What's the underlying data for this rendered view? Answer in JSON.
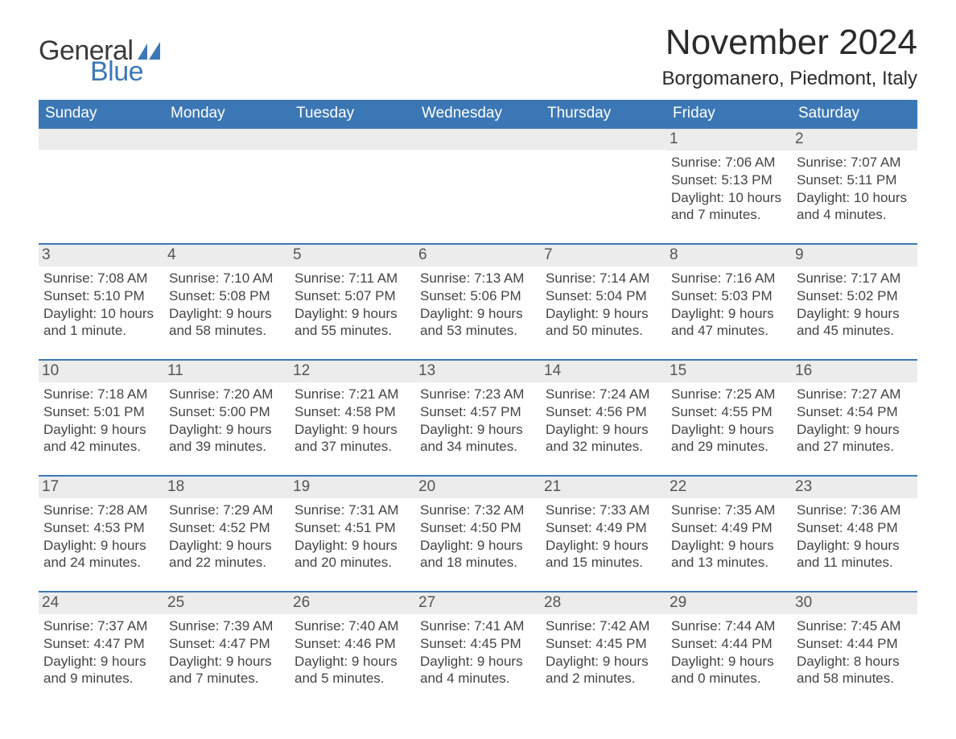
{
  "brand": {
    "word1": "General",
    "word2": "Blue",
    "accent_color": "#3d78b6"
  },
  "title": "November 2024",
  "location": "Borgomanero, Piedmont, Italy",
  "colors": {
    "header_bg": "#3c77b5",
    "header_text": "#ffffff",
    "row_border": "#3d78b6",
    "daynum_bg": "#ececec",
    "text": "#2e2e2e",
    "page_bg": "#ffffff"
  },
  "typography": {
    "title_fontsize_pt": 33,
    "location_fontsize_pt": 18,
    "dow_fontsize_pt": 14,
    "daynum_fontsize_pt": 14,
    "body_fontsize_pt": 12,
    "font_family": "Segoe UI / Helvetica Neue"
  },
  "days_of_week": [
    "Sunday",
    "Monday",
    "Tuesday",
    "Wednesday",
    "Thursday",
    "Friday",
    "Saturday"
  ],
  "labels": {
    "sunrise": "Sunrise",
    "sunset": "Sunset",
    "daylight": "Daylight"
  },
  "weeks": [
    [
      null,
      null,
      null,
      null,
      null,
      {
        "n": 1,
        "sunrise": "7:06 AM",
        "sunset": "5:13 PM",
        "daylight": "10 hours and 7 minutes."
      },
      {
        "n": 2,
        "sunrise": "7:07 AM",
        "sunset": "5:11 PM",
        "daylight": "10 hours and 4 minutes."
      }
    ],
    [
      {
        "n": 3,
        "sunrise": "7:08 AM",
        "sunset": "5:10 PM",
        "daylight": "10 hours and 1 minute."
      },
      {
        "n": 4,
        "sunrise": "7:10 AM",
        "sunset": "5:08 PM",
        "daylight": "9 hours and 58 minutes."
      },
      {
        "n": 5,
        "sunrise": "7:11 AM",
        "sunset": "5:07 PM",
        "daylight": "9 hours and 55 minutes."
      },
      {
        "n": 6,
        "sunrise": "7:13 AM",
        "sunset": "5:06 PM",
        "daylight": "9 hours and 53 minutes."
      },
      {
        "n": 7,
        "sunrise": "7:14 AM",
        "sunset": "5:04 PM",
        "daylight": "9 hours and 50 minutes."
      },
      {
        "n": 8,
        "sunrise": "7:16 AM",
        "sunset": "5:03 PM",
        "daylight": "9 hours and 47 minutes."
      },
      {
        "n": 9,
        "sunrise": "7:17 AM",
        "sunset": "5:02 PM",
        "daylight": "9 hours and 45 minutes."
      }
    ],
    [
      {
        "n": 10,
        "sunrise": "7:18 AM",
        "sunset": "5:01 PM",
        "daylight": "9 hours and 42 minutes."
      },
      {
        "n": 11,
        "sunrise": "7:20 AM",
        "sunset": "5:00 PM",
        "daylight": "9 hours and 39 minutes."
      },
      {
        "n": 12,
        "sunrise": "7:21 AM",
        "sunset": "4:58 PM",
        "daylight": "9 hours and 37 minutes."
      },
      {
        "n": 13,
        "sunrise": "7:23 AM",
        "sunset": "4:57 PM",
        "daylight": "9 hours and 34 minutes."
      },
      {
        "n": 14,
        "sunrise": "7:24 AM",
        "sunset": "4:56 PM",
        "daylight": "9 hours and 32 minutes."
      },
      {
        "n": 15,
        "sunrise": "7:25 AM",
        "sunset": "4:55 PM",
        "daylight": "9 hours and 29 minutes."
      },
      {
        "n": 16,
        "sunrise": "7:27 AM",
        "sunset": "4:54 PM",
        "daylight": "9 hours and 27 minutes."
      }
    ],
    [
      {
        "n": 17,
        "sunrise": "7:28 AM",
        "sunset": "4:53 PM",
        "daylight": "9 hours and 24 minutes."
      },
      {
        "n": 18,
        "sunrise": "7:29 AM",
        "sunset": "4:52 PM",
        "daylight": "9 hours and 22 minutes."
      },
      {
        "n": 19,
        "sunrise": "7:31 AM",
        "sunset": "4:51 PM",
        "daylight": "9 hours and 20 minutes."
      },
      {
        "n": 20,
        "sunrise": "7:32 AM",
        "sunset": "4:50 PM",
        "daylight": "9 hours and 18 minutes."
      },
      {
        "n": 21,
        "sunrise": "7:33 AM",
        "sunset": "4:49 PM",
        "daylight": "9 hours and 15 minutes."
      },
      {
        "n": 22,
        "sunrise": "7:35 AM",
        "sunset": "4:49 PM",
        "daylight": "9 hours and 13 minutes."
      },
      {
        "n": 23,
        "sunrise": "7:36 AM",
        "sunset": "4:48 PM",
        "daylight": "9 hours and 11 minutes."
      }
    ],
    [
      {
        "n": 24,
        "sunrise": "7:37 AM",
        "sunset": "4:47 PM",
        "daylight": "9 hours and 9 minutes."
      },
      {
        "n": 25,
        "sunrise": "7:39 AM",
        "sunset": "4:47 PM",
        "daylight": "9 hours and 7 minutes."
      },
      {
        "n": 26,
        "sunrise": "7:40 AM",
        "sunset": "4:46 PM",
        "daylight": "9 hours and 5 minutes."
      },
      {
        "n": 27,
        "sunrise": "7:41 AM",
        "sunset": "4:45 PM",
        "daylight": "9 hours and 4 minutes."
      },
      {
        "n": 28,
        "sunrise": "7:42 AM",
        "sunset": "4:45 PM",
        "daylight": "9 hours and 2 minutes."
      },
      {
        "n": 29,
        "sunrise": "7:44 AM",
        "sunset": "4:44 PM",
        "daylight": "9 hours and 0 minutes."
      },
      {
        "n": 30,
        "sunrise": "7:45 AM",
        "sunset": "4:44 PM",
        "daylight": "8 hours and 58 minutes."
      }
    ]
  ]
}
